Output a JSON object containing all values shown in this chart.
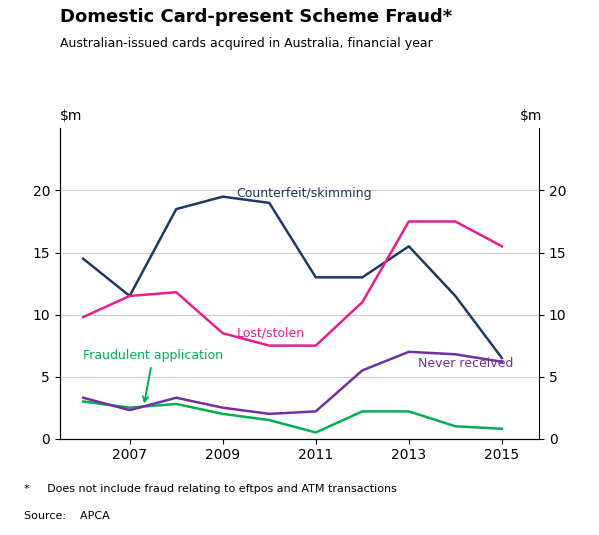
{
  "title": "Domestic Card-present Scheme Fraud*",
  "subtitle": "Australian-issued cards acquired in Australia, financial year",
  "footnote": "*     Does not include fraud relating to eftpos and ATM transactions",
  "source": "Source:    APCA",
  "years": [
    2006,
    2007,
    2008,
    2009,
    2010,
    2011,
    2012,
    2013,
    2014,
    2015
  ],
  "counterfeit_skimming": [
    14.5,
    11.5,
    18.5,
    19.5,
    19.0,
    13.0,
    13.0,
    15.5,
    11.5,
    6.5
  ],
  "lost_stolen": [
    9.8,
    11.5,
    11.8,
    8.5,
    7.5,
    7.5,
    11.0,
    17.5,
    17.5,
    15.5
  ],
  "fraudulent_application": [
    3.0,
    2.5,
    2.8,
    2.0,
    1.5,
    0.5,
    2.2,
    2.2,
    1.0,
    0.8
  ],
  "never_received": [
    3.3,
    2.3,
    3.3,
    2.5,
    2.0,
    2.2,
    5.5,
    7.0,
    6.8,
    6.2
  ],
  "counterfeit_color": "#1f3864",
  "lost_stolen_color": "#e91e8c",
  "fraudulent_color": "#00b050",
  "never_received_color": "#7030a0",
  "ylim": [
    0,
    25
  ],
  "yticks": [
    0,
    5,
    10,
    15,
    20
  ],
  "xlim_left": 2005.5,
  "xlim_right": 2015.8,
  "xticks": [
    2007,
    2009,
    2011,
    2013,
    2015
  ]
}
